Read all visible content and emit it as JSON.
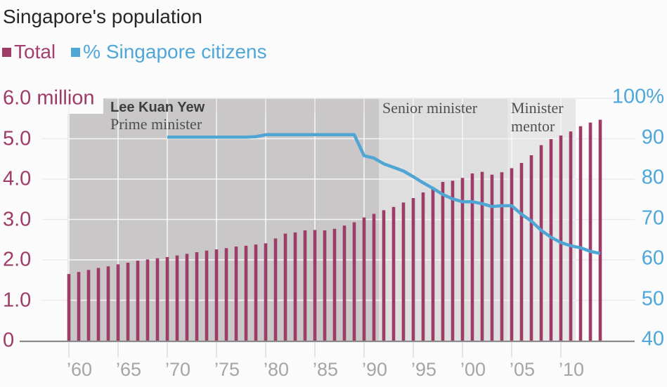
{
  "title": "Singapore's population",
  "legend": [
    {
      "label": "Total",
      "color": "#9d3c66",
      "text_color": "#a4406f"
    },
    {
      "label": "% Singapore citizens",
      "color": "#4fa5d3",
      "text_color": "#4fa7d9"
    }
  ],
  "chart_data": {
    "type": "bar",
    "subtype": "combo-bar-line",
    "x_years": [
      1960,
      1961,
      1962,
      1963,
      1964,
      1965,
      1966,
      1967,
      1968,
      1969,
      1970,
      1971,
      1972,
      1973,
      1974,
      1975,
      1976,
      1977,
      1978,
      1979,
      1980,
      1981,
      1982,
      1983,
      1984,
      1985,
      1986,
      1987,
      1988,
      1989,
      1990,
      1991,
      1992,
      1993,
      1994,
      1995,
      1996,
      1997,
      1998,
      1999,
      2000,
      2001,
      2002,
      2003,
      2004,
      2005,
      2006,
      2007,
      2008,
      2009,
      2010,
      2011,
      2012,
      2013,
      2014
    ],
    "series": [
      {
        "name": "Total",
        "type": "bar",
        "axis": "left",
        "unit": "million",
        "color": "#9d3c66",
        "start_year": 1960,
        "values": [
          1.65,
          1.7,
          1.75,
          1.8,
          1.84,
          1.89,
          1.93,
          1.98,
          2.01,
          2.04,
          2.07,
          2.11,
          2.15,
          2.19,
          2.23,
          2.26,
          2.29,
          2.33,
          2.35,
          2.38,
          2.41,
          2.53,
          2.65,
          2.68,
          2.73,
          2.74,
          2.73,
          2.77,
          2.85,
          2.93,
          3.05,
          3.14,
          3.23,
          3.31,
          3.42,
          3.53,
          3.67,
          3.8,
          3.93,
          3.96,
          4.03,
          4.14,
          4.18,
          4.11,
          4.17,
          4.27,
          4.4,
          4.59,
          4.84,
          4.99,
          5.08,
          5.18,
          5.31,
          5.4,
          5.47
        ]
      },
      {
        "name": "% Singapore citizens",
        "type": "line",
        "axis": "right",
        "unit": "%",
        "color": "#4fa5d3",
        "start_year": 1970,
        "values": [
          90.4,
          90.4,
          90.4,
          90.4,
          90.4,
          90.4,
          90.4,
          90.4,
          90.4,
          90.5,
          91.0,
          91.0,
          91.0,
          91.0,
          91.0,
          91.0,
          91.0,
          91.0,
          91.0,
          91.0,
          85.8,
          85.2,
          83.8,
          82.9,
          82.0,
          80.6,
          79.1,
          77.7,
          76.2,
          75.1,
          74.4,
          74.4,
          73.9,
          73.2,
          73.4,
          73.4,
          71.3,
          69.6,
          67.3,
          65.6,
          64.3,
          63.5,
          63.0,
          62.1,
          61.6
        ]
      }
    ],
    "left_axis": {
      "labels": [
        "6.0 million",
        "5.0",
        "4.0",
        "3.0",
        "2.0",
        "1.0",
        "0"
      ],
      "values": [
        6,
        5,
        4,
        3,
        2,
        1,
        0
      ],
      "min": 0,
      "max": 6,
      "color": "#9d3c66"
    },
    "right_axis": {
      "labels": [
        "100%",
        "90",
        "80",
        "70",
        "60",
        "50",
        "40"
      ],
      "values": [
        100,
        90,
        80,
        70,
        60,
        50,
        40
      ],
      "min": 40,
      "max": 100,
      "color": "#4da7d8"
    },
    "x_axis": {
      "tick_labels": [
        "’60",
        "’65",
        "’70",
        "’75",
        "’80",
        "’85",
        "’90",
        "’95",
        "’00",
        "’05",
        "’10"
      ],
      "tick_years": [
        1960,
        1965,
        1970,
        1975,
        1980,
        1985,
        1990,
        1995,
        2000,
        2005,
        2010
      ]
    },
    "eras": [
      {
        "title": "Lee Kuan Yew",
        "subtitle": "Prime minister",
        "start": 1959.9,
        "end": 1991.5,
        "color": "#c9c7c8"
      },
      {
        "title": "",
        "subtitle": "Senior minister",
        "start": 1991.5,
        "end": 2004.6,
        "color": "#dededf"
      },
      {
        "title": "",
        "subtitle": "Minister mentor",
        "start": 2004.6,
        "end": 2011.5,
        "color": "#e8e7e8"
      }
    ],
    "grid": true,
    "legend_position": "top-left"
  }
}
